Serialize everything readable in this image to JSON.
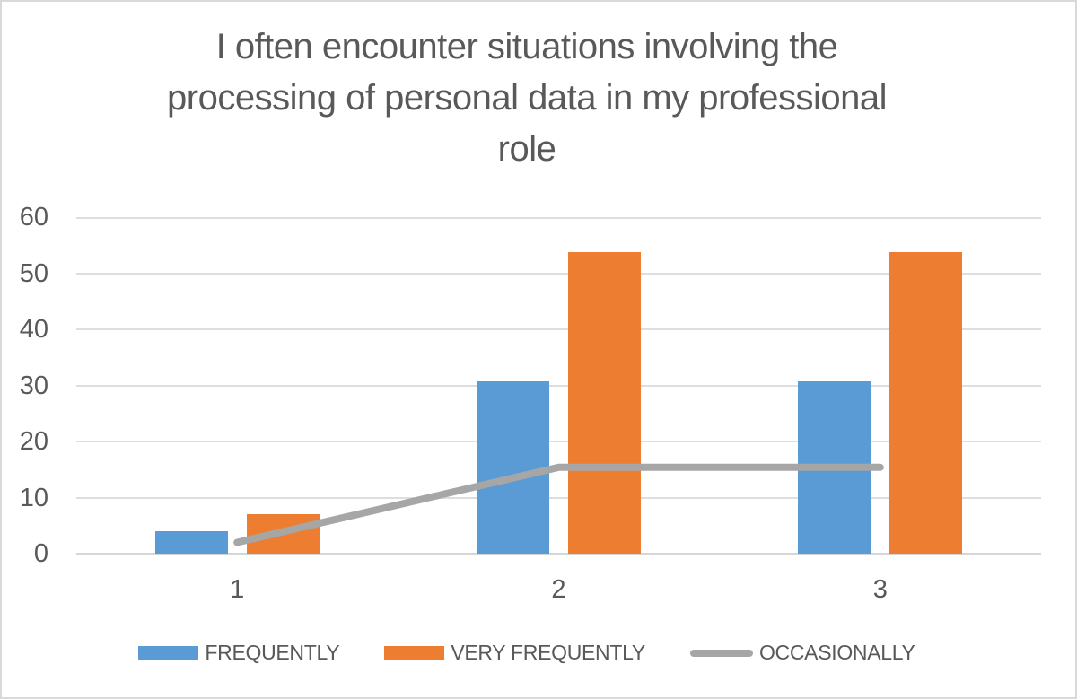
{
  "chart": {
    "title_lines": [
      "I often encounter situations involving the",
      "processing of personal data in my professional",
      "role"
    ]
  },
  "chart_data": {
    "type": "bar",
    "subtype": "clustered-column-with-line-overlay",
    "title": "I often encounter situations involving the processing of personal data in my professional role",
    "categories": [
      "1",
      "2",
      "3"
    ],
    "series": [
      {
        "name": "FREQUENTLY",
        "render": "column",
        "color": "#5B9BD5",
        "values": [
          4,
          30.8,
          30.8
        ]
      },
      {
        "name": "VERY FREQUENTLY",
        "render": "column",
        "color": "#ED7D31",
        "values": [
          7,
          53.8,
          53.8
        ]
      },
      {
        "name": "OCCASIONALLY",
        "render": "line",
        "color": "#A6A6A6",
        "values": [
          2,
          15.4,
          15.4
        ]
      }
    ],
    "xlabel": "",
    "ylabel": "",
    "ylim": [
      0,
      60
    ],
    "yticks": [
      0,
      10,
      20,
      30,
      40,
      50,
      60
    ],
    "grid": true,
    "legend_position": "bottom"
  },
  "colors": {
    "text": "#595959",
    "gridline": "#DEDEDE",
    "axis_line": "#D6D6D6",
    "chart_border": "#D9D9D9",
    "background": "#FFFFFF"
  }
}
